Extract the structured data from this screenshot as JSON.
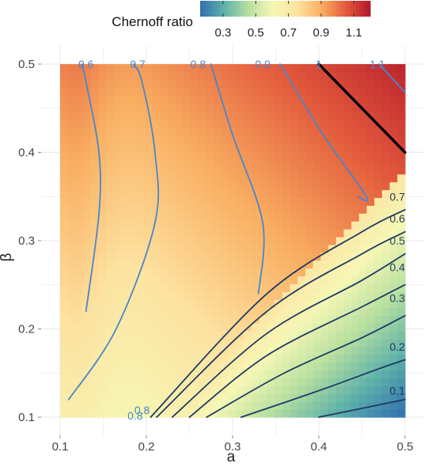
{
  "chart_data": {
    "type": "heatmap",
    "xlabel": "a",
    "ylabel": "β",
    "xlim": [
      0.1,
      0.5
    ],
    "ylim": [
      0.1,
      0.5
    ],
    "x_ticks": [
      "0.1",
      "0.2",
      "0.3",
      "0.4",
      "0.5"
    ],
    "y_ticks": [
      "0.1",
      "0.2",
      "0.3",
      "0.4",
      "0.5"
    ],
    "x_tick_values": [
      0.1,
      0.2,
      0.3,
      0.4,
      0.5
    ],
    "y_tick_values": [
      0.1,
      0.2,
      0.3,
      0.4,
      0.5
    ],
    "grid": true,
    "legend": {
      "title": "Chernoff ratio",
      "placement": "top",
      "ticks": [
        "0.3",
        "0.5",
        "0.7",
        "0.9",
        "1.1"
      ],
      "tick_values": [
        0.3,
        0.5,
        0.7,
        0.9,
        1.1
      ],
      "range": [
        0.16,
        1.2
      ],
      "colors": [
        "#2f6fb0",
        "#5fb2a9",
        "#b8e0a0",
        "#f6f7b5",
        "#fde2a0",
        "#f9ae61",
        "#e35a3c",
        "#b2182b"
      ]
    },
    "contour_colors": {
      "high": "#4a86c9",
      "low": "#1f3a63",
      "level_1": "#000000"
    },
    "contours": [
      {
        "level": 0.6,
        "label": "0.6",
        "side": "high",
        "points": [
          [
            0.13,
            0.22
          ],
          [
            0.145,
            0.33
          ],
          [
            0.145,
            0.4
          ],
          [
            0.13,
            0.48
          ],
          [
            0.125,
            0.5
          ]
        ]
      },
      {
        "level": 0.7,
        "label": "0.7",
        "side": "high",
        "points": [
          [
            0.11,
            0.12
          ],
          [
            0.165,
            0.2
          ],
          [
            0.21,
            0.32
          ],
          [
            0.21,
            0.4
          ],
          [
            0.195,
            0.48
          ],
          [
            0.185,
            0.5
          ]
        ]
      },
      {
        "level": 0.8,
        "label": "0.8",
        "side": "high",
        "points": [
          [
            0.33,
            0.24
          ],
          [
            0.335,
            0.32
          ],
          [
            0.3,
            0.42
          ],
          [
            0.275,
            0.5
          ]
        ]
      },
      {
        "level": 0.9,
        "label": "0.9",
        "side": "high",
        "points": [
          [
            0.445,
            0.35
          ],
          [
            0.455,
            0.35
          ],
          [
            0.405,
            0.42
          ],
          [
            0.355,
            0.5
          ]
        ]
      },
      {
        "level": 1.0,
        "label": "1",
        "side": "level_1",
        "points": [
          [
            0.4,
            0.5
          ],
          [
            0.5,
            0.4
          ]
        ]
      },
      {
        "level": 1.1,
        "label": "1.1",
        "side": "high",
        "points": [
          [
            0.47,
            0.5
          ],
          [
            0.5,
            0.468
          ]
        ]
      },
      {
        "level": 0.7,
        "label": "0.7",
        "side": "low",
        "points": [
          [
            0.205,
            0.1
          ],
          [
            0.34,
            0.24
          ],
          [
            0.45,
            0.31
          ],
          [
            0.5,
            0.335
          ]
        ]
      },
      {
        "level": 0.6,
        "label": "0.6",
        "side": "low",
        "points": [
          [
            0.212,
            0.1
          ],
          [
            0.34,
            0.22
          ],
          [
            0.45,
            0.285
          ],
          [
            0.5,
            0.31
          ]
        ]
      },
      {
        "level": 0.5,
        "label": "0.5",
        "side": "low",
        "points": [
          [
            0.23,
            0.1
          ],
          [
            0.34,
            0.195
          ],
          [
            0.45,
            0.255
          ],
          [
            0.5,
            0.285
          ]
        ]
      },
      {
        "level": 0.4,
        "label": "0.4",
        "side": "low",
        "points": [
          [
            0.25,
            0.1
          ],
          [
            0.34,
            0.17
          ],
          [
            0.45,
            0.225
          ],
          [
            0.5,
            0.25
          ]
        ]
      },
      {
        "level": 0.3,
        "label": "0.3",
        "side": "low",
        "points": [
          [
            0.27,
            0.1
          ],
          [
            0.36,
            0.15
          ],
          [
            0.45,
            0.19
          ],
          [
            0.5,
            0.215
          ]
        ]
      },
      {
        "level": 0.2,
        "label": "0.2",
        "side": "low",
        "points": [
          [
            0.31,
            0.1
          ],
          [
            0.4,
            0.13
          ],
          [
            0.47,
            0.155
          ],
          [
            0.5,
            0.165
          ]
        ]
      },
      {
        "level": 0.1,
        "label": "0.1",
        "side": "low",
        "points": [
          [
            0.4,
            0.1
          ],
          [
            0.45,
            0.11
          ],
          [
            0.5,
            0.12
          ]
        ]
      }
    ],
    "contour_labels": [
      {
        "text": "0.6",
        "x": 0.13,
        "y": 0.5
      },
      {
        "text": "0.7",
        "x": 0.19,
        "y": 0.5
      },
      {
        "text": "0.8",
        "x": 0.26,
        "y": 0.5
      },
      {
        "text": "0.9",
        "x": 0.335,
        "y": 0.5
      },
      {
        "text": "1",
        "x": 0.4,
        "y": 0.5
      },
      {
        "text": "1.1",
        "x": 0.468,
        "y": 0.5
      },
      {
        "text": "0.7",
        "x": 0.5,
        "y": 0.35
      },
      {
        "text": "0.6",
        "x": 0.5,
        "y": 0.325
      },
      {
        "text": "0.5",
        "x": 0.5,
        "y": 0.3
      },
      {
        "text": "0.4",
        "x": 0.5,
        "y": 0.27
      },
      {
        "text": "0.3",
        "x": 0.5,
        "y": 0.235
      },
      {
        "text": "0.2",
        "x": 0.5,
        "y": 0.18
      },
      {
        "text": "0.1",
        "x": 0.5,
        "y": 0.13
      },
      {
        "text": "0.8",
        "x": 0.195,
        "y": 0.108
      },
      {
        "text": "0.8",
        "x": 0.187,
        "y": 0.102
      }
    ]
  }
}
